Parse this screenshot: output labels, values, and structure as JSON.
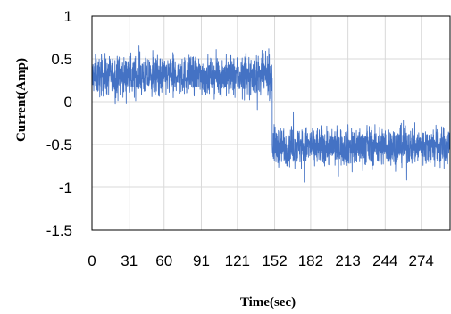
{
  "chart_data": {
    "type": "line",
    "xlabel": "Time(sec)",
    "ylabel": "Current(Amp)",
    "ylim": [
      -1.5,
      1
    ],
    "xlim": [
      0,
      298
    ],
    "yticks": [
      1,
      0.5,
      0,
      -0.5,
      -1,
      -1.5
    ],
    "ytick_labels": [
      "1",
      "0.5",
      "0",
      "-0.5",
      "-1",
      "-1.5"
    ],
    "xticks": [
      0,
      31,
      60,
      91,
      121,
      152,
      182,
      213,
      244,
      274
    ],
    "xtick_labels": [
      "0",
      "31",
      "60",
      "91",
      "121",
      "152",
      "182",
      "213",
      "244",
      "274"
    ],
    "grid": true,
    "legend": "none",
    "series": [
      {
        "color": "#4472C4",
        "segments": [
          {
            "x_start": 0,
            "x_end": 150,
            "mean": 0.3,
            "spread": 0.38
          },
          {
            "x_start": 150,
            "x_end": 298,
            "mean": -0.52,
            "spread": 0.38
          }
        ]
      }
    ]
  }
}
